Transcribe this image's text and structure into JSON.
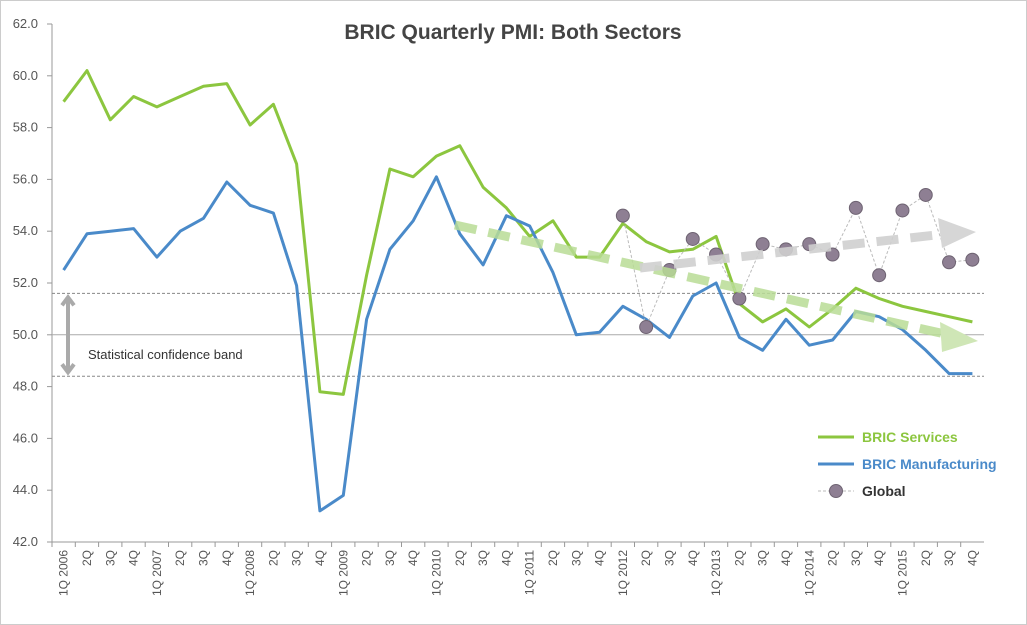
{
  "chart_data": {
    "type": "line",
    "title": "BRIC Quarterly PMI: Both Sectors",
    "categories": [
      "1Q 2006",
      "2Q",
      "3Q",
      "4Q",
      "1Q 2007",
      "2Q",
      "3Q",
      "4Q",
      "1Q 2008",
      "2Q",
      "3Q",
      "4Q",
      "1Q 2009",
      "2Q",
      "3Q",
      "4Q",
      "1Q 2010",
      "2Q",
      "3Q",
      "4Q",
      "1Q 2011",
      "2Q",
      "3Q",
      "4Q",
      "1Q 2012",
      "2Q",
      "3Q",
      "4Q",
      "1Q 2013",
      "2Q",
      "3Q",
      "4Q",
      "1Q 2014",
      "2Q",
      "3Q",
      "4Q",
      "1Q 2015",
      "2Q",
      "3Q",
      "4Q"
    ],
    "series": [
      {
        "name": "BRIC Services",
        "color": "#8cc63f",
        "style": "line",
        "values": [
          59.0,
          60.2,
          58.3,
          59.2,
          58.8,
          59.2,
          59.6,
          59.7,
          58.1,
          58.9,
          56.6,
          47.8,
          47.7,
          52.3,
          56.4,
          56.1,
          56.9,
          57.3,
          55.7,
          54.9,
          53.8,
          54.4,
          53.0,
          53.0,
          54.3,
          53.6,
          53.2,
          53.3,
          53.8,
          51.2,
          50.5,
          51.0,
          50.3,
          51.0,
          51.8,
          51.4,
          51.1,
          50.9,
          50.7,
          50.5
        ]
      },
      {
        "name": "BRIC Manufacturing",
        "color": "#4a8ac9",
        "style": "line",
        "values": [
          52.5,
          53.9,
          54.0,
          54.1,
          53.0,
          54.0,
          54.5,
          55.9,
          55.0,
          54.7,
          51.9,
          43.2,
          43.8,
          50.6,
          53.3,
          54.4,
          56.1,
          53.9,
          52.7,
          54.6,
          54.2,
          52.4,
          50.0,
          50.1,
          51.1,
          50.6,
          49.9,
          51.5,
          52.0,
          49.9,
          49.4,
          50.6,
          49.6,
          49.8,
          50.9,
          50.7,
          50.2,
          49.4,
          48.5,
          48.5
        ]
      },
      {
        "name": "Global",
        "color": "#8e7f93",
        "style": "dashed-markers",
        "values": [
          null,
          null,
          null,
          null,
          null,
          null,
          null,
          null,
          null,
          null,
          null,
          null,
          null,
          null,
          null,
          null,
          null,
          null,
          null,
          null,
          null,
          null,
          null,
          null,
          54.6,
          50.3,
          52.5,
          53.7,
          53.1,
          51.4,
          53.5,
          53.3,
          53.5,
          53.1,
          54.9,
          52.3,
          54.8,
          55.4,
          52.8,
          52.9
        ]
      }
    ],
    "ylim": [
      42,
      62
    ],
    "yticks": [
      {
        "value": 42,
        "label": "42.0"
      },
      {
        "value": 44,
        "label": "44.0"
      },
      {
        "value": 46,
        "label": "46.0"
      },
      {
        "value": 48,
        "label": "48.0"
      },
      {
        "value": 50,
        "label": "50.0"
      },
      {
        "value": 52,
        "label": "52.0"
      },
      {
        "value": 54,
        "label": "54.0"
      },
      {
        "value": 56,
        "label": "56.0"
      },
      {
        "value": 58,
        "label": "58.0"
      },
      {
        "value": 60,
        "label": "60.0"
      },
      {
        "value": 62,
        "label": "62.0"
      }
    ],
    "reference_line": 50,
    "band": [
      51.6,
      48.4
    ],
    "band_label": "Statistical  confidence band",
    "legend": "lower-right"
  }
}
